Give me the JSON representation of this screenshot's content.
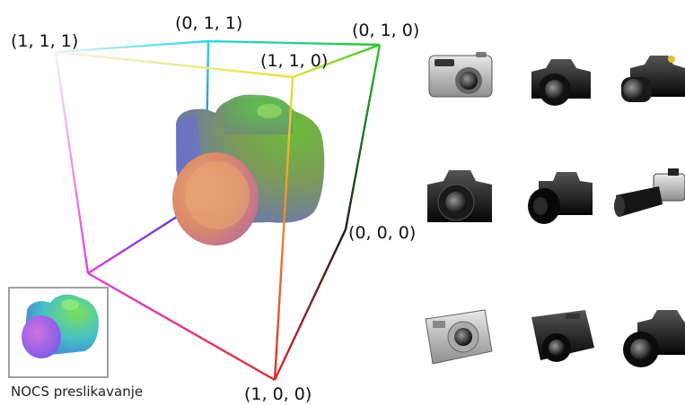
{
  "cube": {
    "corner_labels": {
      "c111": "(1, 1, 1)",
      "c011": "(0, 1, 1)",
      "c010": "(0, 1, 0)",
      "c110": "(1, 1, 0)",
      "c000": "(0, 0, 0)",
      "c100": "(1, 0, 0)"
    }
  },
  "inset": {
    "label": "NOCS preslikavanje"
  },
  "gallery": {
    "items": [
      {
        "icon": "compact-silver-camera-icon",
        "tone": "silver"
      },
      {
        "icon": "black-dslr-camera-icon",
        "tone": "black"
      },
      {
        "icon": "dslr-long-lens-camera-icon",
        "tone": "black"
      },
      {
        "icon": "black-dslr-front-camera-icon",
        "tone": "black"
      },
      {
        "icon": "black-dslr-side-camera-icon",
        "tone": "black"
      },
      {
        "icon": "telephoto-lens-camera-icon",
        "tone": "mixed"
      },
      {
        "icon": "compact-silver-camera-icon",
        "tone": "silver"
      },
      {
        "icon": "black-compact-camera-icon",
        "tone": "black"
      },
      {
        "icon": "black-dslr-camera-icon",
        "tone": "black"
      }
    ]
  }
}
